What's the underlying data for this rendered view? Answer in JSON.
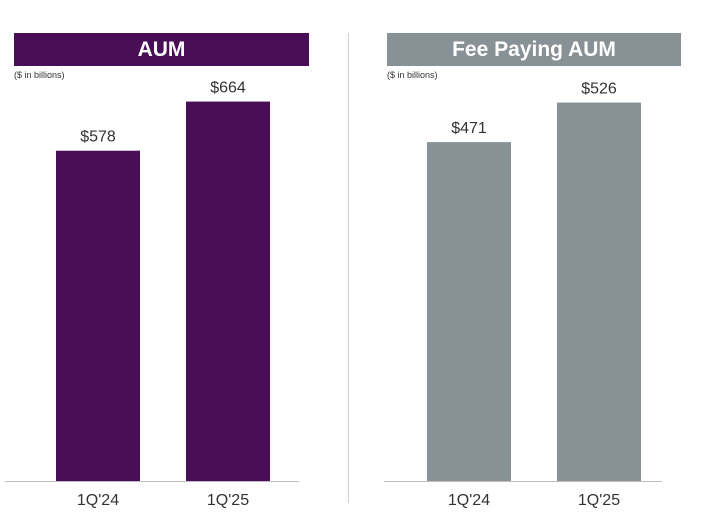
{
  "chart_data": [
    {
      "type": "bar",
      "title": "AUM",
      "subtitle": "($ in billions)",
      "categories": [
        "1Q'24",
        "1Q'25"
      ],
      "values": [
        578,
        664
      ],
      "value_labels": [
        "$578",
        "$664"
      ],
      "color": "#4a0e57",
      "header_color": "#4a0e57",
      "ylim": [
        0,
        700
      ],
      "grid": false
    },
    {
      "type": "bar",
      "title": "Fee Paying AUM",
      "subtitle": "($ in billions)",
      "categories": [
        "1Q'24",
        "1Q'25"
      ],
      "values": [
        471,
        526
      ],
      "value_labels": [
        "$471",
        "$526"
      ],
      "color": "#889196",
      "header_color": "#889196",
      "ylim": [
        0,
        556
      ],
      "grid": false
    }
  ]
}
